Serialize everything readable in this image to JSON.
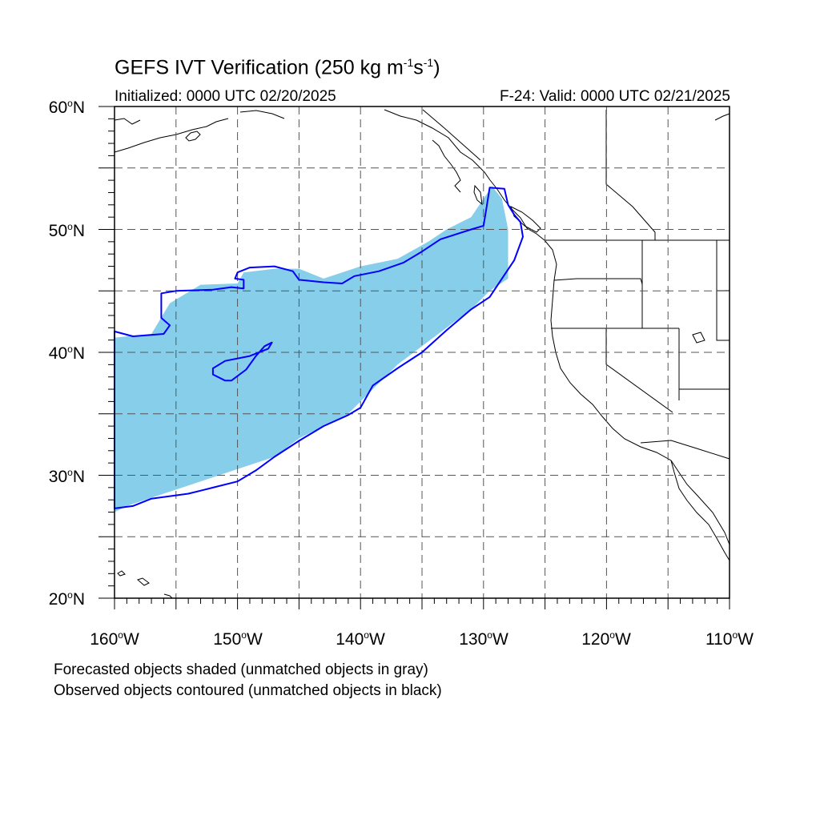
{
  "header": {
    "title_main": "GEFS IVT Verification (250 kg m",
    "title_sup1": "-1",
    "title_mid": "s",
    "title_sup2": "-1",
    "title_end": ")",
    "initialized": "Initialized: 0000 UTC 02/20/2025",
    "valid": "F-24: Valid: 0000 UTC 02/21/2025"
  },
  "map": {
    "extent": {
      "lon": [
        -160,
        -110
      ],
      "lat": [
        20,
        60
      ]
    },
    "projection": "cylindrical equidistant",
    "grid": "dashed every 5 degrees",
    "lat_labels": [
      {
        "lat": 60,
        "num": "60",
        "unit": "N"
      },
      {
        "lat": 50,
        "num": "50",
        "unit": "N"
      },
      {
        "lat": 40,
        "num": "40",
        "unit": "N"
      },
      {
        "lat": 30,
        "num": "30",
        "unit": "N"
      },
      {
        "lat": 20,
        "num": "20",
        "unit": "N"
      }
    ],
    "lon_labels": [
      {
        "lon": -160,
        "num": "160",
        "unit": "W"
      },
      {
        "lon": -150,
        "num": "150",
        "unit": "W"
      },
      {
        "lon": -140,
        "num": "140",
        "unit": "W"
      },
      {
        "lon": -130,
        "num": "130",
        "unit": "W"
      },
      {
        "lon": -120,
        "num": "120",
        "unit": "W"
      },
      {
        "lon": -110,
        "num": "110",
        "unit": "W"
      }
    ],
    "forecast_fill_color": "#87ceeb",
    "observed_contour_color": "#0000ff",
    "forecast_object": [
      [
        -160,
        41.2
      ],
      [
        -157,
        41.5
      ],
      [
        -155.5,
        44
      ],
      [
        -153,
        45.5
      ],
      [
        -150,
        45.6
      ],
      [
        -149.5,
        46.5
      ],
      [
        -147,
        46.8
      ],
      [
        -145,
        46.8
      ],
      [
        -143,
        46
      ],
      [
        -140,
        47
      ],
      [
        -137,
        47.6
      ],
      [
        -134.5,
        49
      ],
      [
        -133,
        50
      ],
      [
        -131,
        51
      ],
      [
        -130,
        52.5
      ],
      [
        -129.3,
        53.5
      ],
      [
        -128.5,
        52.5
      ],
      [
        -128,
        50
      ],
      [
        -128,
        46
      ],
      [
        -129.5,
        45
      ],
      [
        -131,
        43.5
      ],
      [
        -133,
        42
      ],
      [
        -135,
        40.5
      ],
      [
        -137,
        39
      ],
      [
        -139,
        37
      ],
      [
        -140,
        36
      ],
      [
        -141,
        35
      ],
      [
        -143,
        34
      ],
      [
        -145,
        33
      ],
      [
        -147,
        31.5
      ],
      [
        -150,
        30.5
      ],
      [
        -153,
        29.5
      ],
      [
        -156,
        28.5
      ],
      [
        -159,
        27.5
      ],
      [
        -160,
        27
      ]
    ],
    "observed_object": [
      [
        -160,
        41.7
      ],
      [
        -158.5,
        41.3
      ],
      [
        -156,
        41.5
      ],
      [
        -155.5,
        42.2
      ],
      [
        -156.2,
        42.8
      ],
      [
        -156.2,
        44.8
      ],
      [
        -155,
        45
      ],
      [
        -152,
        45.1
      ],
      [
        -150.5,
        45.3
      ],
      [
        -149.5,
        45.2
      ],
      [
        -149.5,
        45.9
      ],
      [
        -150.2,
        46
      ],
      [
        -150,
        46.5
      ],
      [
        -149,
        46.9
      ],
      [
        -147,
        47
      ],
      [
        -145.5,
        46.6
      ],
      [
        -145,
        45.9
      ],
      [
        -143,
        45.7
      ],
      [
        -141.5,
        45.6
      ],
      [
        -140.5,
        46.2
      ],
      [
        -138.5,
        46.6
      ],
      [
        -136.5,
        47.3
      ],
      [
        -135,
        48.2
      ],
      [
        -133.5,
        49.2
      ],
      [
        -131,
        50
      ],
      [
        -130,
        50.3
      ],
      [
        -129.8,
        51.5
      ],
      [
        -129.5,
        53.4
      ],
      [
        -128.3,
        53.3
      ],
      [
        -128,
        52
      ],
      [
        -127.5,
        51.2
      ],
      [
        -127,
        50.6
      ],
      [
        -126.8,
        49.4
      ],
      [
        -127.5,
        47.5
      ],
      [
        -128.5,
        46
      ],
      [
        -129.5,
        44.5
      ],
      [
        -131,
        43.5
      ],
      [
        -133,
        41.8
      ],
      [
        -135,
        40
      ],
      [
        -137,
        38.7
      ],
      [
        -139,
        37.3
      ],
      [
        -140,
        35.5
      ],
      [
        -141,
        34.9
      ],
      [
        -143,
        34
      ],
      [
        -145,
        32.8
      ],
      [
        -147,
        31.5
      ],
      [
        -148.5,
        30.4
      ],
      [
        -150,
        29.5
      ],
      [
        -152,
        29
      ],
      [
        -154,
        28.5
      ],
      [
        -157,
        28.1
      ],
      [
        -158.5,
        27.5
      ],
      [
        -160,
        27.3
      ]
    ],
    "observed_hole": [
      [
        -152,
        38.7
      ],
      [
        -151,
        39.3
      ],
      [
        -149,
        39.7
      ],
      [
        -147.5,
        40.3
      ],
      [
        -147.2,
        40.8
      ],
      [
        -147.8,
        40.5
      ],
      [
        -148.5,
        39.7
      ],
      [
        -149.3,
        38.6
      ],
      [
        -150.5,
        37.7
      ],
      [
        -151,
        37.7
      ],
      [
        -152,
        38.2
      ]
    ]
  },
  "legend": {
    "line1": "Forecasted objects shaded (unmatched objects in gray)",
    "line2": "Observed objects contoured (unmatched objects in black)"
  }
}
